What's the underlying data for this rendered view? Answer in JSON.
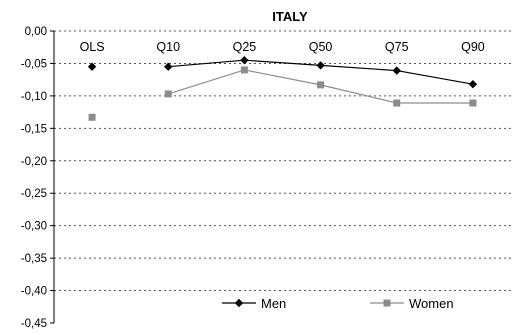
{
  "chart_data": {
    "type": "line",
    "title": "ITALY",
    "categories": [
      "OLS",
      "Q10",
      "Q25",
      "Q50",
      "Q75",
      "Q90"
    ],
    "ylim": [
      -0.45,
      0.0
    ],
    "yticks": [
      "0,00",
      "-0,05",
      "-0,10",
      "-0,15",
      "-0,20",
      "-0,25",
      "-0,30",
      "-0,35",
      "-0,40",
      "-0,45"
    ],
    "grid": true,
    "legend_position": "bottom-right",
    "series": [
      {
        "name": "Men",
        "values": [
          -0.055,
          -0.055,
          -0.045,
          -0.053,
          -0.061,
          -0.082
        ],
        "color": "#000000",
        "marker": "diamond",
        "line_from": 1
      },
      {
        "name": "Women",
        "values": [
          -0.133,
          -0.097,
          -0.06,
          -0.083,
          -0.111,
          -0.111
        ],
        "color": "#8c8c8c",
        "marker": "square",
        "line_from": 1
      }
    ]
  }
}
